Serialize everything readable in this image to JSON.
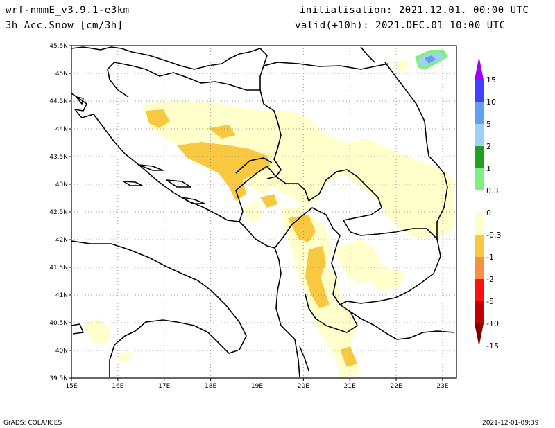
{
  "header": {
    "model": "wrf-nmmE_v3.9.1-e3km",
    "field": "3h Acc.Snow [cm/3h]",
    "init": "initialisation: 2021.12.01.  00:00 UTC",
    "valid": "valid(+10h): 2021.DEC.01 10:00 UTC"
  },
  "map": {
    "lat_labels": [
      "45.5N",
      "45N",
      "44.5N",
      "44N",
      "43.5N",
      "43N",
      "42.5N",
      "42N",
      "41.5N",
      "41N",
      "40.5N",
      "40N",
      "39.5N"
    ],
    "lon_labels": [
      "15E",
      "16E",
      "17E",
      "18E",
      "19E",
      "20E",
      "21E",
      "22E",
      "23E"
    ],
    "lat_range": [
      39.5,
      45.5
    ],
    "lon_range": [
      15,
      23.3
    ],
    "grid": true
  },
  "colorbar": {
    "labels": [
      "15",
      "10",
      "5",
      "2",
      "1",
      "0.3",
      "0",
      "-0.3",
      "-1",
      "-2",
      "-5",
      "-10",
      "-15"
    ],
    "colors": [
      "#a000ff",
      "#4040ff",
      "#60a0f0",
      "#a0d0f8",
      "#20a020",
      "#80f080",
      "#ffffff",
      "#ffffcc",
      "#f8c840",
      "#f89040",
      "#ff1010",
      "#c00000",
      "#800000"
    ]
  },
  "footer": {
    "left": "GrADS: COLA/IGES",
    "right": "2021-12-01-09:39"
  }
}
